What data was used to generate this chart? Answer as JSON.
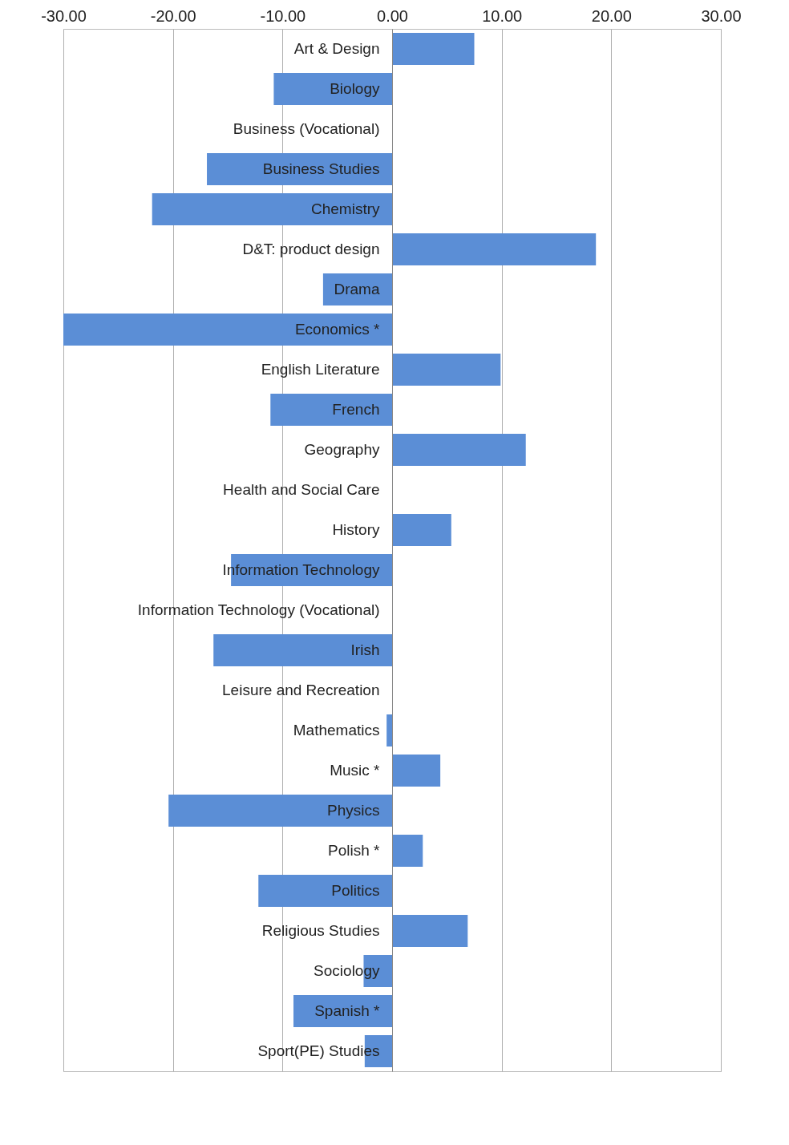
{
  "chart_data": {
    "type": "bar",
    "orientation": "horizontal",
    "categories": [
      "Art & Design",
      "Biology",
      "Business (Vocational)",
      "Business Studies",
      "Chemistry",
      "D&T: product design",
      "Drama",
      "Economics *",
      "English Literature",
      "French",
      "Geography",
      "Health and Social Care",
      "History",
      "Information Technology",
      "Information Technology (Vocational)",
      "Irish",
      "Leisure and Recreation",
      "Mathematics",
      "Music *",
      "Physics",
      "Polish *",
      "Politics",
      "Religious Studies",
      "Sociology",
      "Spanish *",
      "Sport(PE) Studies"
    ],
    "values": [
      7.5,
      -10.8,
      0,
      -16.9,
      -21.9,
      18.6,
      -6.3,
      -30,
      9.9,
      -11.1,
      12.2,
      0,
      5.4,
      -14.7,
      0,
      -16.3,
      0,
      -0.5,
      4.4,
      -20.4,
      2.8,
      -12.2,
      6.9,
      -2.6,
      -9.0,
      -2.5
    ],
    "color": "#5b8ed6",
    "xlim": [
      -30,
      30
    ],
    "xticks": [
      {
        "value": -30,
        "label": "-30.00"
      },
      {
        "value": -20,
        "label": "-20.00"
      },
      {
        "value": -10,
        "label": "-10.00"
      },
      {
        "value": 0,
        "label": "0.00"
      },
      {
        "value": 10,
        "label": "10.00"
      },
      {
        "value": 20,
        "label": "20.00"
      },
      {
        "value": 30,
        "label": "30.00"
      }
    ],
    "grid": true
  }
}
